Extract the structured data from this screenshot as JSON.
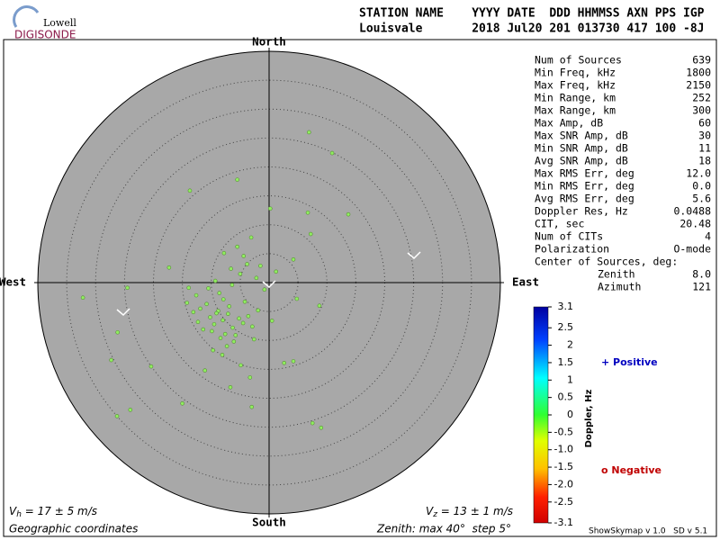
{
  "header": {
    "logo_top": "Lowell",
    "logo_bottom": "DIGISONDE",
    "line1": "STATION NAME    YYYY DATE  DDD HHMMSS AXN PPS IGP",
    "line2": "Louisvale       2018 Jul20 201 013730 417 100 -8J"
  },
  "chart_data": {
    "type": "scatter",
    "directions": {
      "north": "North",
      "south": "South",
      "east": "East",
      "west": "West"
    },
    "xlim": [
      -40,
      40
    ],
    "ylim": [
      -40,
      40
    ],
    "rings": [
      5,
      10,
      15,
      20,
      25,
      30,
      35
    ],
    "color": "#90ee60",
    "x": [
      6.9,
      10.9,
      -13.7,
      13.7,
      6.7,
      -32.2,
      -26.3,
      -24.0,
      7.5,
      9.0,
      -27.3,
      4.2,
      2.6,
      -5.5,
      0.2,
      7.2,
      4.2,
      4.8,
      8.7,
      -24.5,
      -26.2,
      -20.4,
      -15.0,
      -3.0,
      -6.7,
      -17.3,
      -13.9,
      -8.0,
      -9.5,
      -7.1,
      -10.2,
      -6.3,
      -8.8,
      -11.4,
      -5.2,
      -7.6,
      -9.1,
      -4.5,
      -12.3,
      -6.9,
      -8.4,
      -10.8,
      -3.6,
      -7.9,
      -5.8,
      -9.9,
      -11.9,
      -6.1,
      -4.2,
      -8.6,
      -2.9,
      -13.1,
      -7.3,
      -5.0,
      -3.8,
      -6.6,
      -4.4,
      -2.2,
      -1.5,
      -7.8,
      -9.3,
      -5.5,
      -3.1,
      -0.8,
      1.2,
      -10.5,
      -12.6,
      -6.4,
      -8.1,
      -4.9,
      -14.2,
      -2.6,
      0.5,
      -1.9,
      -11.1,
      -9.7,
      -3.3
    ],
    "y": [
      26.0,
      22.4,
      15.9,
      11.8,
      12.1,
      -2.6,
      -23.1,
      -22.0,
      -24.3,
      -25.1,
      -13.4,
      -13.6,
      -13.9,
      17.8,
      12.8,
      8.4,
      4.0,
      -2.8,
      -4.0,
      -0.9,
      -8.6,
      -14.5,
      -20.9,
      -21.5,
      -18.1,
      2.6,
      -0.9,
      -6.5,
      -7.2,
      -5.4,
      -6.0,
      -7.8,
      -4.9,
      -8.1,
      -6.2,
      -8.9,
      -5.3,
      -7.0,
      -6.8,
      -4.1,
      -9.6,
      -3.7,
      -5.8,
      -2.9,
      -9.1,
      -8.4,
      -4.5,
      -10.2,
      -3.3,
      -1.8,
      -7.6,
      -5.1,
      -11.0,
      1.5,
      3.2,
      2.4,
      4.6,
      0.8,
      2.9,
      5.1,
      0.3,
      6.2,
      7.8,
      -1.2,
      1.9,
      -1.0,
      -2.2,
      -0.4,
      -12.5,
      -14.3,
      -3.5,
      -9.8,
      -6.6,
      -4.8,
      -15.2,
      -11.7,
      -16.4
    ],
    "vh": {
      "symbol": "V",
      "sub": "h",
      "text": " = 17 ± 5 m/s"
    },
    "vz": {
      "symbol": "V",
      "sub": "z",
      "text": " = 13 ± 1 m/s"
    },
    "coords": "Geographic coordinates",
    "zenith": "Zenith: max 40°  step 5°",
    "version": "ShowSkymap v 1.0   SD v 5.1",
    "colorbar": {
      "label": "Doppler, Hz",
      "ylim": [
        -3.1,
        3.1
      ],
      "yticks": [
        3.1,
        2.5,
        2,
        1.5,
        1,
        0.5,
        0,
        -0.5,
        {
          "value": -1,
          "label": "-1.0"
        },
        -1.5,
        {
          "value": -2,
          "label": "-2.0"
        },
        -2.5,
        -3.1
      ]
    },
    "legend": {
      "positive": "+ Positive",
      "negative": "o Negative"
    }
  },
  "stats": [
    [
      "Num of Sources",
      "639"
    ],
    [
      "Min Freq, kHz",
      "1800"
    ],
    [
      "Max Freq, kHz",
      "2150"
    ],
    [
      "Min Range, km",
      "252"
    ],
    [
      "Max Range, km",
      "300"
    ],
    [
      "Max Amp, dB",
      "60"
    ],
    [
      "Max SNR Amp, dB",
      "30"
    ],
    [
      "Min SNR Amp, dB",
      "11"
    ],
    [
      "Avg SNR Amp, dB",
      "18"
    ],
    [
      "Max RMS Err, deg",
      "12.0"
    ],
    [
      "Min RMS Err, deg",
      "0.0"
    ],
    [
      "Avg RMS Err, deg",
      "5.6"
    ],
    [
      "Doppler Res, Hz",
      "0.0488"
    ],
    [
      "CIT, sec",
      "20.48"
    ],
    [
      "Num of CITs",
      "4"
    ],
    [
      "Polarization",
      "O-mode"
    ]
  ],
  "center": {
    "heading": "Center of Sources, deg:",
    "rows": [
      [
        "Zenith",
        "8.0"
      ],
      [
        "Azimuth",
        "121"
      ]
    ]
  }
}
